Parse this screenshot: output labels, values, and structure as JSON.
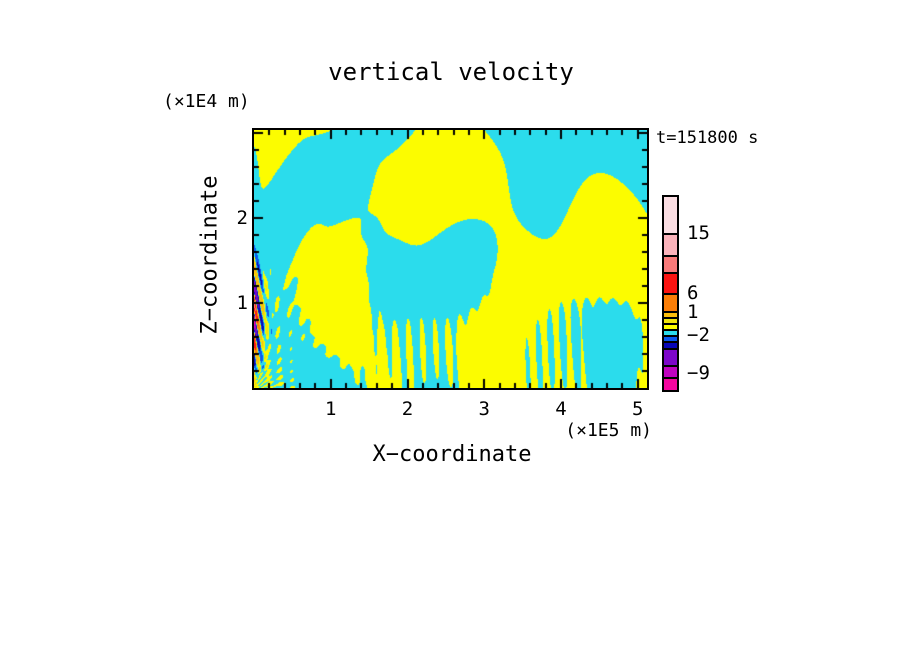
{
  "page": {
    "background": "#ffffff",
    "text_color": "#000000"
  },
  "chart_data": {
    "type": "heatmap",
    "title": "vertical velocity",
    "annotation": "t=151800 s",
    "xlabel": "X−coordinate",
    "x_units": "(×1E5 m)",
    "ylabel": "Z−coordinate",
    "y_units": "(×1E4 m)",
    "x_ticks": [
      1,
      2,
      3,
      4,
      5
    ],
    "y_ticks": [
      1,
      2
    ],
    "xlim": [
      0,
      5.12
    ],
    "ylim": [
      0,
      3.03
    ],
    "minor_tick_step": 0.2,
    "grid": false,
    "legend_position": "colorbar-right",
    "field_colors": {
      "positive_band": "#fcfc00",
      "negative_band": "#2bdcec"
    },
    "field_summary": "Filled-contour x-z cross-section of vertical velocity: mostly weak alternating positive (yellow) and negative (cyan) gravity-wave bands; a fan of fine wave fronts on the left, fine vertical striations along the bottom, and a strong narrow column of large positive/negative values (red/orange/blue/purple) at the left boundary around z = 0.5-1.4 x1E4 m.",
    "colorbar": {
      "labels": [
        {
          "text": "15",
          "offset": 36
        },
        {
          "text": "6",
          "offset": 96
        },
        {
          "text": "1",
          "offset": 115
        },
        {
          "text": "−2",
          "offset": 138
        },
        {
          "text": "−9",
          "offset": 176
        }
      ],
      "segments_top_to_bottom": [
        {
          "color": "#fbdee3",
          "height": 36
        },
        {
          "color": "#fbb3bb",
          "height": 22
        },
        {
          "color": "#f97a7a",
          "height": 17
        },
        {
          "color": "#fb1412",
          "height": 21
        },
        {
          "color": "#fb7e07",
          "height": 18
        },
        {
          "color": "#fcbe0c",
          "height": 6
        },
        {
          "color": "#f0e40c",
          "height": 6
        },
        {
          "color": "#fcfc00",
          "height": 6
        },
        {
          "color": "#2bdcec",
          "height": 6
        },
        {
          "color": "#0a59f0",
          "height": 6
        },
        {
          "color": "#0806b6",
          "height": 7
        },
        {
          "color": "#7d06c9",
          "height": 17
        },
        {
          "color": "#c003c0",
          "height": 12
        },
        {
          "color": "#f5059f",
          "height": 13
        }
      ]
    },
    "generator": {
      "thresholds": [
        -12,
        -9,
        -5,
        -2,
        -1,
        0,
        0.8,
        1.4,
        3.5,
        6,
        10,
        15,
        18
      ],
      "colors": [
        "#f5059f",
        "#c003c0",
        "#7d06c9",
        "#0806b6",
        "#0a59f0",
        "#2bdcec",
        "#fcfc00",
        "#f0e40c",
        "#fcbe0c",
        "#fb7e07",
        "#fb1412",
        "#f97a7a",
        "#fbb3bb",
        "#fbdee3"
      ],
      "waves": [
        [
          0.55,
          2.2,
          -1.9,
          1.2
        ],
        [
          0.5,
          1.2,
          2.8,
          4.0
        ],
        [
          0.45,
          3.4,
          1.4,
          2.1
        ],
        [
          0.38,
          1.9,
          -3.3,
          5.0
        ],
        [
          0.34,
          4.6,
          2.3,
          0.8
        ],
        [
          0.3,
          0.8,
          1.4,
          2.7
        ],
        [
          0.25,
          5.6,
          -1.1,
          3.6
        ],
        [
          0.15,
          0.0,
          1.1,
          0.9
        ]
      ],
      "fan": {
        "amp": 0.9,
        "decay": 0.55,
        "n_theta": 40,
        "cx": -0.08,
        "cz": -0.1,
        "swirl": 2.0
      },
      "striations": {
        "amp": 0.85,
        "k": 38,
        "tilt": 2.0,
        "z_center": 0.4,
        "z_width": 0.6,
        "mod_kx": 3.1,
        "mod_kz": 2.2
      },
      "squash": {
        "scale": 0.78,
        "gain": 1.15
      },
      "left_feature": {
        "amp": 15,
        "x_decay": 0.06,
        "z_center": 0.85,
        "z_width": 0.5,
        "k": 62,
        "tilt": 14
      }
    }
  }
}
